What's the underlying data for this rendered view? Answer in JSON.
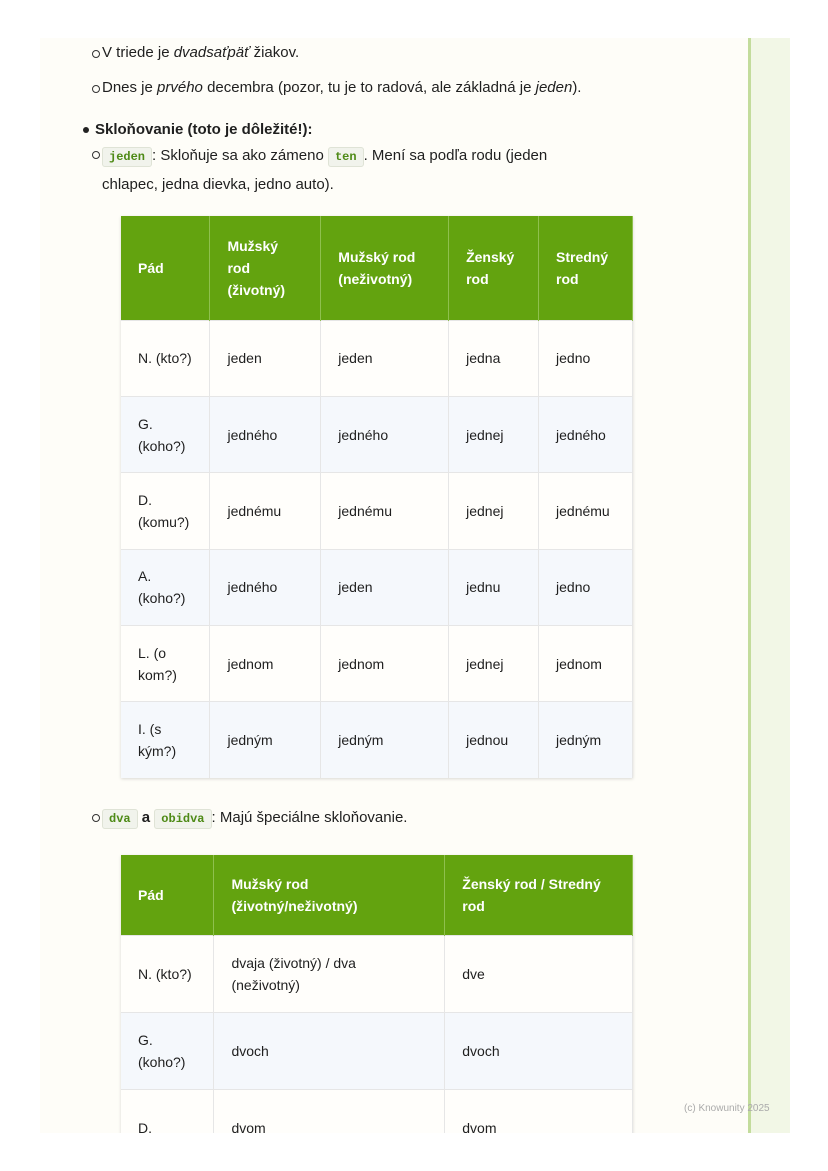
{
  "lines": {
    "l1": {
      "a": "V triede je ",
      "i": "dvadsaťpäť",
      "b": " žiakov."
    },
    "l2": {
      "a": "Dnes je ",
      "i": "prvého",
      "b": " decembra (pozor, tu je to radová, ale základná je ",
      "i2": "jeden",
      "c": ")."
    },
    "heading": "Skloňovanie (toto je dôležité!):",
    "l3": {
      "code1": "jeden",
      "a": ": Skloňuje sa ako zámeno ",
      "code2": "ten",
      "b": ". Mení sa podľa rodu (jeden",
      "c": "chlapec, jedna dievka, jedno auto)."
    },
    "l4": {
      "code1": "dva",
      "a": " a ",
      "code2": "obidva",
      "b": ": Majú špeciálne skloňovanie."
    }
  },
  "table1": {
    "headers": [
      "Pád",
      "Mužský rod (životný)",
      "Mužský rod (neživotný)",
      "Ženský rod",
      "Stredný rod"
    ],
    "rows": [
      [
        "N. (kto?)",
        "jeden",
        "jeden",
        "jedna",
        "jedno"
      ],
      [
        "G. (koho?)",
        "jedného",
        "jedného",
        "jednej",
        "jedného"
      ],
      [
        "D. (komu?)",
        "jednému",
        "jednému",
        "jednej",
        "jednému"
      ],
      [
        "A. (koho?)",
        "jedného",
        "jeden",
        "jednu",
        "jedno"
      ],
      [
        "L. (o kom?)",
        "jednom",
        "jednom",
        "jednej",
        "jednom"
      ],
      [
        "I. (s kým?)",
        "jedným",
        "jedným",
        "jednou",
        "jedným"
      ]
    ]
  },
  "table2": {
    "headers": [
      "Pád",
      "Mužský rod (životný/neživotný)",
      "Ženský rod / Stredný rod"
    ],
    "rows": [
      [
        "N. (kto?)",
        "dvaja (životný) / dva (neživotný)",
        "dve"
      ],
      [
        "G. (koho?)",
        "dvoch",
        "dvoch"
      ],
      [
        "D.",
        "dvom",
        "dvom"
      ]
    ]
  },
  "footer": "(c) Knowunity 2025"
}
